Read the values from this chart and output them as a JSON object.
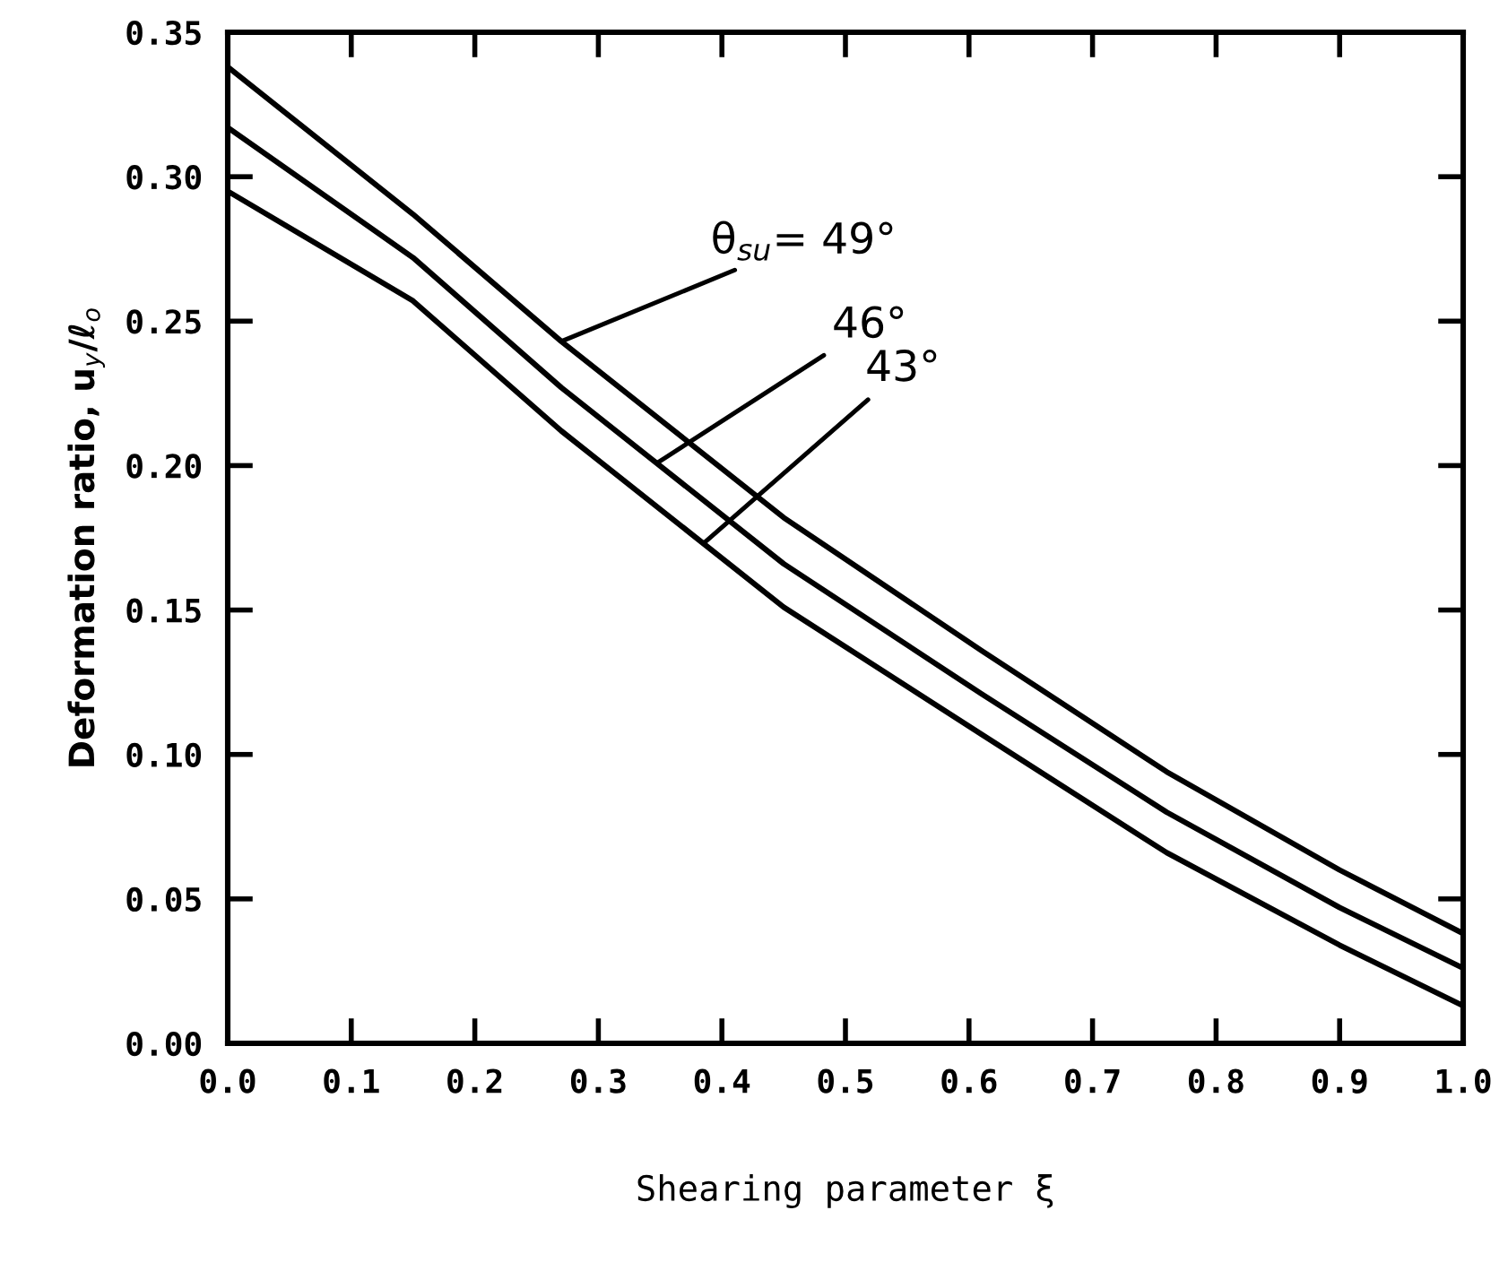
{
  "chart_data": {
    "type": "line",
    "xlabel": "Shearing parameter ξ",
    "ylabel": "Deformation ratio, u$_{y}$/ℓ$_{o}$",
    "x": [
      0,
      0.15,
      0.27,
      0.45,
      0.61,
      0.76,
      0.9,
      1.0
    ],
    "series": [
      {
        "color": "#000000",
        "values": [
          0.338,
          0.287,
          0.243,
          0.182,
          0.136,
          0.094,
          0.06,
          0.038
        ]
      },
      {
        "color": "#000000",
        "values": [
          0.317,
          0.272,
          0.227,
          0.166,
          0.121,
          0.08,
          0.047,
          0.026
        ]
      },
      {
        "color": "#000000",
        "values": [
          0.295,
          0.257,
          0.212,
          0.151,
          0.107,
          0.066,
          0.034,
          0.013
        ]
      }
    ],
    "annotations": [
      {
        "text": "θ$_{su}$= 49°",
        "x": 0.27,
        "y": 0.243
      },
      {
        "text": "46°",
        "x": 0.348,
        "y": 0.201
      },
      {
        "text": "43°",
        "x": 0.385,
        "y": 0.173
      }
    ],
    "xlim": [
      0,
      1.0
    ],
    "ylim": [
      0,
      0.35
    ],
    "xticks": [
      {
        "value": 0,
        "label": "0.0"
      },
      {
        "value": 0.1,
        "label": "0.1"
      },
      {
        "value": 0.2,
        "label": "0.2"
      },
      {
        "value": 0.3,
        "label": "0.3"
      },
      {
        "value": 0.4,
        "label": "0.4"
      },
      {
        "value": 0.5,
        "label": "0.5"
      },
      {
        "value": 0.6,
        "label": "0.6"
      },
      {
        "value": 0.7,
        "label": "0.7"
      },
      {
        "value": 0.8,
        "label": "0.8"
      },
      {
        "value": 0.9,
        "label": "0.9"
      },
      {
        "value": 1.0,
        "label": "1.0"
      }
    ],
    "yticks": [
      {
        "value": 0,
        "label": "0.00"
      },
      {
        "value": 0.05,
        "label": "0.05"
      },
      {
        "value": 0.1,
        "label": "0.10"
      },
      {
        "value": 0.15,
        "label": "0.15"
      },
      {
        "value": 0.2,
        "label": "0.20"
      },
      {
        "value": 0.25,
        "label": "0.25"
      },
      {
        "value": 0.3,
        "label": "0.30"
      },
      {
        "value": 0.35,
        "label": "0.35"
      }
    ],
    "grid": false,
    "legend": false,
    "marker": "none",
    "line_style": "solid"
  }
}
